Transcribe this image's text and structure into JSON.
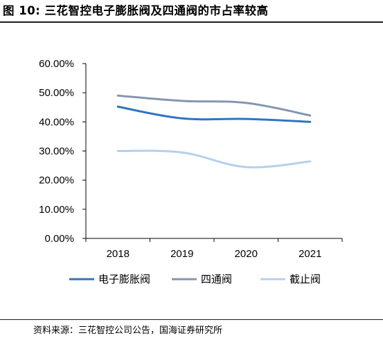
{
  "header": {
    "title": "图 10:  三花智控电子膨胀阀及四通阀的市占率较高"
  },
  "footer": {
    "source": "资料来源：三花智控公司公告，国海证券研究所"
  },
  "chart_data": {
    "type": "line",
    "categories": [
      "2018",
      "2019",
      "2020",
      "2021"
    ],
    "y_tick_labels": [
      "0.00%",
      "10.00%",
      "20.00%",
      "30.00%",
      "40.00%",
      "50.00%",
      "60.00%"
    ],
    "ylim": [
      0,
      60
    ],
    "series": [
      {
        "name": "电子膨胀阀",
        "values": [
          45.2,
          41.2,
          41.0,
          40.0
        ],
        "color": "#2e75c0"
      },
      {
        "name": "四通阀",
        "values": [
          49.0,
          47.2,
          46.5,
          42.2
        ],
        "color": "#8496b0"
      },
      {
        "name": "截止阀",
        "values": [
          30.0,
          29.5,
          24.5,
          26.4
        ],
        "color": "#b4d0ee"
      }
    ],
    "legend_position": "bottom",
    "grid": false
  }
}
